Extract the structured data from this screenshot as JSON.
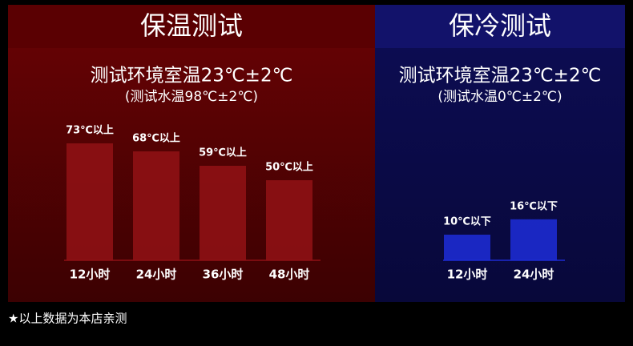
{
  "chart_data": [
    {
      "type": "bar",
      "title": "保温测试",
      "subtitle": "测试环境室温23℃±2℃",
      "annotation": "(测试水温98℃±2℃)",
      "categories": [
        "12小时",
        "24小时",
        "36小时",
        "48小时"
      ],
      "values": [
        73,
        68,
        59,
        50
      ],
      "value_labels": [
        "73℃以上",
        "68℃以上",
        "59℃以上",
        "50℃以上"
      ],
      "color": "#8e1114"
    },
    {
      "type": "bar",
      "title": "保冷测试",
      "subtitle": "测试环境室温23℃±2℃",
      "annotation": "(测试水温0℃±2℃)",
      "categories": [
        "12小时",
        "24小时"
      ],
      "values": [
        10,
        16
      ],
      "value_labels": [
        "10℃以下",
        "16℃以下"
      ],
      "color": "#1d2bd0"
    }
  ],
  "footnote": "★以上数据为本店亲测"
}
